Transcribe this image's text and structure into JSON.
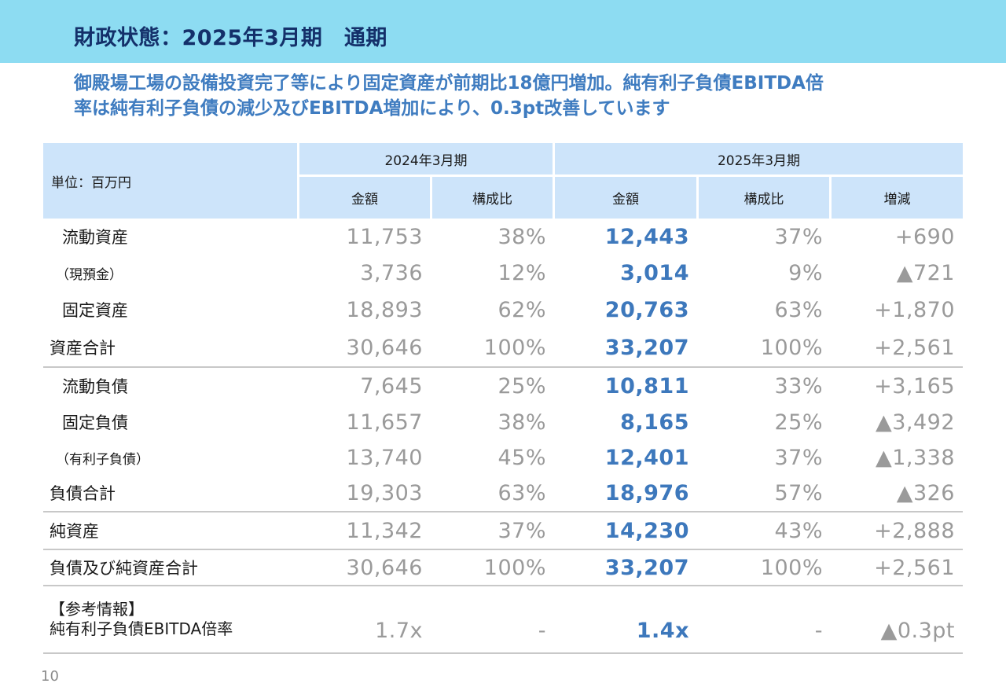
{
  "title": "財政状態：2025年3月期　通期",
  "subtitle_lines": [
    "御殿場工場の設備投資完了等により固定資産が前期比18億円増加。純有利子負債EBITDA倍",
    "率は純有利子負債の減少及びEBITDA増加により、0.3pt改善しています"
  ],
  "table": {
    "unit_label": "単位：百万円",
    "period_prev": "2024年3月期",
    "period_curr": "2025年3月期",
    "col_amount": "金額",
    "col_ratio": "構成比",
    "col_change": "増減",
    "rows": [
      {
        "label": "流動資産",
        "prev_amount": "11,753",
        "prev_ratio": "38%",
        "curr_amount": "12,443",
        "curr_ratio": "37%",
        "change": "+690"
      },
      {
        "label": "（現預金）",
        "prev_amount": "3,736",
        "prev_ratio": "12%",
        "curr_amount": "3,014",
        "curr_ratio": "9%",
        "change": "▲721"
      },
      {
        "label": "固定資産",
        "prev_amount": "18,893",
        "prev_ratio": "62%",
        "curr_amount": "20,763",
        "curr_ratio": "63%",
        "change": "+1,870"
      },
      {
        "label": "資産合計",
        "prev_amount": "30,646",
        "prev_ratio": "100%",
        "curr_amount": "33,207",
        "curr_ratio": "100%",
        "change": "+2,561"
      },
      {
        "label": "流動負債",
        "prev_amount": "7,645",
        "prev_ratio": "25%",
        "curr_amount": "10,811",
        "curr_ratio": "33%",
        "change": "+3,165"
      },
      {
        "label": "固定負債",
        "prev_amount": "11,657",
        "prev_ratio": "38%",
        "curr_amount": "8,165",
        "curr_ratio": "25%",
        "change": "▲3,492"
      },
      {
        "label": "（有利子負債）",
        "prev_amount": "13,740",
        "prev_ratio": "45%",
        "curr_amount": "12,401",
        "curr_ratio": "37%",
        "change": "▲1,338"
      },
      {
        "label": "負債合計",
        "prev_amount": "19,303",
        "prev_ratio": "63%",
        "curr_amount": "18,976",
        "curr_ratio": "57%",
        "change": "▲326"
      },
      {
        "label": "純資産",
        "prev_amount": "11,342",
        "prev_ratio": "37%",
        "curr_amount": "14,230",
        "curr_ratio": "43%",
        "change": "+2,888"
      },
      {
        "label": "負債及び純資産合計",
        "prev_amount": "30,646",
        "prev_ratio": "100%",
        "curr_amount": "33,207",
        "curr_ratio": "100%",
        "change": "+2,561"
      }
    ],
    "reference": {
      "heading": "【参考情報】",
      "label": "純有利子負債EBITDA倍率",
      "prev_amount": "1.7x",
      "prev_ratio": "-",
      "curr_amount": "1.4x",
      "curr_ratio": "-",
      "change": "▲0.3pt"
    }
  },
  "page_number": "10",
  "colors": {
    "header_band": "#8ddcf2",
    "title": "#14306a",
    "subtitle": "#3f7cc0",
    "table_header": "#cde4fa",
    "current_value": "#3d78bc",
    "muted_value": "#9a9a9a"
  }
}
